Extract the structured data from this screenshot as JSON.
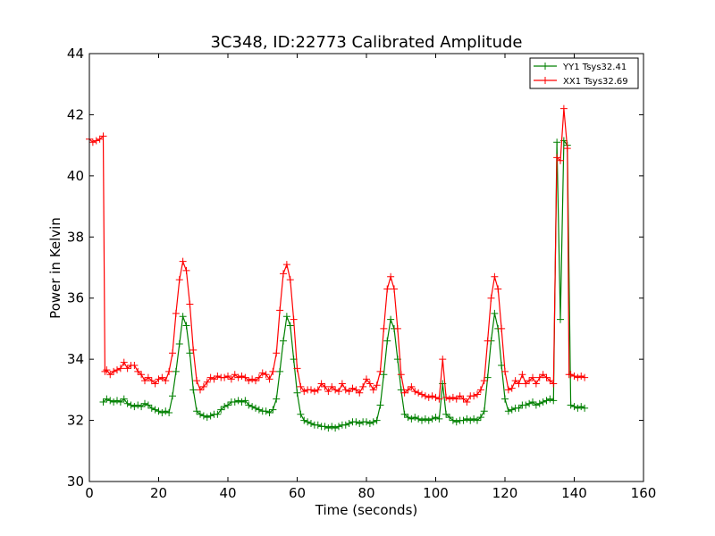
{
  "chart_data": {
    "type": "line",
    "title": "3C348, ID:22773 Calibrated Amplitude",
    "xlabel": "Time (seconds)",
    "ylabel": "Power in Kelvin",
    "xlim": [
      0,
      160
    ],
    "ylim": [
      30,
      44
    ],
    "xticks": [
      0,
      20,
      40,
      60,
      80,
      100,
      120,
      140,
      160
    ],
    "yticks": [
      30,
      32,
      34,
      36,
      38,
      40,
      42,
      44
    ],
    "grid": false,
    "legend_position": "top-right",
    "marker": "+",
    "series": [
      {
        "name": "YY1 Tsys32.41",
        "color": "#008000",
        "points": [
          [
            4,
            32.6
          ],
          [
            5,
            32.7
          ],
          [
            6,
            32.65
          ],
          [
            7,
            32.6
          ],
          [
            8,
            32.65
          ],
          [
            9,
            32.6
          ],
          [
            10,
            32.7
          ],
          [
            11,
            32.55
          ],
          [
            12,
            32.5
          ],
          [
            13,
            32.45
          ],
          [
            14,
            32.5
          ],
          [
            15,
            32.45
          ],
          [
            16,
            32.55
          ],
          [
            17,
            32.5
          ],
          [
            18,
            32.4
          ],
          [
            19,
            32.35
          ],
          [
            20,
            32.3
          ],
          [
            21,
            32.25
          ],
          [
            22,
            32.3
          ],
          [
            23,
            32.25
          ],
          [
            24,
            32.8
          ],
          [
            25,
            33.6
          ],
          [
            26,
            34.5
          ],
          [
            27,
            35.4
          ],
          [
            28,
            35.1
          ],
          [
            29,
            34.2
          ],
          [
            30,
            33.0
          ],
          [
            31,
            32.3
          ],
          [
            32,
            32.2
          ],
          [
            33,
            32.15
          ],
          [
            34,
            32.1
          ],
          [
            35,
            32.15
          ],
          [
            36,
            32.2
          ],
          [
            37,
            32.2
          ],
          [
            38,
            32.35
          ],
          [
            39,
            32.45
          ],
          [
            40,
            32.5
          ],
          [
            41,
            32.6
          ],
          [
            42,
            32.6
          ],
          [
            43,
            32.65
          ],
          [
            44,
            32.6
          ],
          [
            45,
            32.65
          ],
          [
            46,
            32.5
          ],
          [
            47,
            32.45
          ],
          [
            48,
            32.4
          ],
          [
            49,
            32.35
          ],
          [
            50,
            32.3
          ],
          [
            51,
            32.3
          ],
          [
            52,
            32.25
          ],
          [
            53,
            32.35
          ],
          [
            54,
            32.7
          ],
          [
            55,
            33.6
          ],
          [
            56,
            34.6
          ],
          [
            57,
            35.4
          ],
          [
            58,
            35.1
          ],
          [
            59,
            34.0
          ],
          [
            60,
            32.9
          ],
          [
            61,
            32.2
          ],
          [
            62,
            32.0
          ],
          [
            63,
            31.95
          ],
          [
            64,
            31.9
          ],
          [
            65,
            31.85
          ],
          [
            66,
            31.85
          ],
          [
            67,
            31.8
          ],
          [
            68,
            31.8
          ],
          [
            69,
            31.75
          ],
          [
            70,
            31.8
          ],
          [
            71,
            31.75
          ],
          [
            72,
            31.8
          ],
          [
            73,
            31.85
          ],
          [
            74,
            31.85
          ],
          [
            75,
            31.9
          ],
          [
            76,
            31.95
          ],
          [
            77,
            31.95
          ],
          [
            78,
            31.9
          ],
          [
            79,
            31.95
          ],
          [
            80,
            31.95
          ],
          [
            81,
            31.9
          ],
          [
            82,
            31.95
          ],
          [
            83,
            32.0
          ],
          [
            84,
            32.5
          ],
          [
            85,
            33.5
          ],
          [
            86,
            34.6
          ],
          [
            87,
            35.3
          ],
          [
            88,
            35.0
          ],
          [
            89,
            34.0
          ],
          [
            90,
            33.0
          ],
          [
            91,
            32.2
          ],
          [
            92,
            32.1
          ],
          [
            93,
            32.05
          ],
          [
            94,
            32.1
          ],
          [
            95,
            32.05
          ],
          [
            96,
            32.0
          ],
          [
            97,
            32.05
          ],
          [
            98,
            32.0
          ],
          [
            99,
            32.05
          ],
          [
            100,
            32.1
          ],
          [
            101,
            32.05
          ],
          [
            102,
            33.2
          ],
          [
            103,
            32.2
          ],
          [
            104,
            32.1
          ],
          [
            105,
            32.0
          ],
          [
            106,
            31.95
          ],
          [
            107,
            32.0
          ],
          [
            108,
            32.0
          ],
          [
            109,
            32.05
          ],
          [
            110,
            32.0
          ],
          [
            111,
            32.05
          ],
          [
            112,
            32.0
          ],
          [
            113,
            32.1
          ],
          [
            114,
            32.3
          ],
          [
            115,
            33.4
          ],
          [
            116,
            34.6
          ],
          [
            117,
            35.5
          ],
          [
            118,
            35.0
          ],
          [
            119,
            33.8
          ],
          [
            120,
            32.7
          ],
          [
            121,
            32.3
          ],
          [
            122,
            32.35
          ],
          [
            123,
            32.4
          ],
          [
            124,
            32.4
          ],
          [
            125,
            32.5
          ],
          [
            126,
            32.5
          ],
          [
            127,
            32.55
          ],
          [
            128,
            32.6
          ],
          [
            129,
            32.5
          ],
          [
            130,
            32.55
          ],
          [
            131,
            32.6
          ],
          [
            132,
            32.65
          ],
          [
            133,
            32.7
          ],
          [
            134,
            32.65
          ],
          [
            135,
            41.1
          ],
          [
            136,
            35.3
          ],
          [
            137,
            41.15
          ],
          [
            138,
            41.0
          ],
          [
            139,
            32.5
          ],
          [
            140,
            32.45
          ],
          [
            141,
            32.4
          ],
          [
            142,
            32.45
          ],
          [
            143,
            32.4
          ]
        ]
      },
      {
        "name": "XX1 Tsys32.69",
        "color": "#ff0000",
        "points": [
          [
            0,
            41.2
          ],
          [
            1,
            41.1
          ],
          [
            2,
            41.15
          ],
          [
            3,
            41.2
          ],
          [
            4,
            41.3
          ],
          [
            4.5,
            33.6
          ],
          [
            5,
            33.65
          ],
          [
            6,
            33.5
          ],
          [
            7,
            33.6
          ],
          [
            8,
            33.65
          ],
          [
            9,
            33.7
          ],
          [
            10,
            33.9
          ],
          [
            11,
            33.7
          ],
          [
            12,
            33.8
          ],
          [
            13,
            33.8
          ],
          [
            14,
            33.6
          ],
          [
            15,
            33.5
          ],
          [
            16,
            33.3
          ],
          [
            17,
            33.4
          ],
          [
            18,
            33.3
          ],
          [
            19,
            33.2
          ],
          [
            20,
            33.35
          ],
          [
            21,
            33.4
          ],
          [
            22,
            33.3
          ],
          [
            23,
            33.6
          ],
          [
            24,
            34.2
          ],
          [
            25,
            35.5
          ],
          [
            26,
            36.6
          ],
          [
            27,
            37.2
          ],
          [
            28,
            36.9
          ],
          [
            29,
            35.8
          ],
          [
            30,
            34.3
          ],
          [
            31,
            33.3
          ],
          [
            32,
            33.0
          ],
          [
            33,
            33.1
          ],
          [
            34,
            33.25
          ],
          [
            35,
            33.4
          ],
          [
            36,
            33.35
          ],
          [
            37,
            33.45
          ],
          [
            38,
            33.4
          ],
          [
            39,
            33.4
          ],
          [
            40,
            33.45
          ],
          [
            41,
            33.35
          ],
          [
            42,
            33.5
          ],
          [
            43,
            33.4
          ],
          [
            44,
            33.45
          ],
          [
            45,
            33.4
          ],
          [
            46,
            33.3
          ],
          [
            47,
            33.35
          ],
          [
            48,
            33.3
          ],
          [
            49,
            33.4
          ],
          [
            50,
            33.55
          ],
          [
            51,
            33.5
          ],
          [
            52,
            33.35
          ],
          [
            53,
            33.6
          ],
          [
            54,
            34.2
          ],
          [
            55,
            35.6
          ],
          [
            56,
            36.8
          ],
          [
            57,
            37.1
          ],
          [
            58,
            36.6
          ],
          [
            59,
            35.3
          ],
          [
            60,
            33.7
          ],
          [
            61,
            33.1
          ],
          [
            62,
            32.95
          ],
          [
            63,
            33.0
          ],
          [
            64,
            33.0
          ],
          [
            65,
            32.95
          ],
          [
            66,
            33.0
          ],
          [
            67,
            33.2
          ],
          [
            68,
            33.1
          ],
          [
            69,
            32.95
          ],
          [
            70,
            33.1
          ],
          [
            71,
            33.0
          ],
          [
            72,
            32.95
          ],
          [
            73,
            33.2
          ],
          [
            74,
            33.0
          ],
          [
            75,
            32.95
          ],
          [
            76,
            33.05
          ],
          [
            77,
            33.0
          ],
          [
            78,
            32.9
          ],
          [
            79,
            33.1
          ],
          [
            80,
            33.35
          ],
          [
            81,
            33.2
          ],
          [
            82,
            33.0
          ],
          [
            83,
            33.15
          ],
          [
            84,
            33.6
          ],
          [
            85,
            35.0
          ],
          [
            86,
            36.3
          ],
          [
            87,
            36.7
          ],
          [
            88,
            36.3
          ],
          [
            89,
            35.0
          ],
          [
            90,
            33.5
          ],
          [
            91,
            32.9
          ],
          [
            92,
            33.0
          ],
          [
            93,
            33.1
          ],
          [
            94,
            32.95
          ],
          [
            95,
            32.9
          ],
          [
            96,
            32.85
          ],
          [
            97,
            32.8
          ],
          [
            98,
            32.75
          ],
          [
            99,
            32.8
          ],
          [
            100,
            32.75
          ],
          [
            101,
            32.7
          ],
          [
            102,
            34.0
          ],
          [
            103,
            32.75
          ],
          [
            104,
            32.7
          ],
          [
            105,
            32.75
          ],
          [
            106,
            32.7
          ],
          [
            107,
            32.8
          ],
          [
            108,
            32.7
          ],
          [
            109,
            32.6
          ],
          [
            110,
            32.8
          ],
          [
            111,
            32.8
          ],
          [
            112,
            32.85
          ],
          [
            113,
            33.0
          ],
          [
            114,
            33.3
          ],
          [
            115,
            34.6
          ],
          [
            116,
            36.0
          ],
          [
            117,
            36.7
          ],
          [
            118,
            36.3
          ],
          [
            119,
            35.0
          ],
          [
            120,
            33.6
          ],
          [
            121,
            33.0
          ],
          [
            122,
            33.05
          ],
          [
            123,
            33.3
          ],
          [
            124,
            33.2
          ],
          [
            125,
            33.5
          ],
          [
            126,
            33.2
          ],
          [
            127,
            33.3
          ],
          [
            128,
            33.4
          ],
          [
            129,
            33.2
          ],
          [
            130,
            33.4
          ],
          [
            131,
            33.5
          ],
          [
            132,
            33.4
          ],
          [
            133,
            33.3
          ],
          [
            134,
            33.2
          ],
          [
            135,
            40.6
          ],
          [
            136,
            40.5
          ],
          [
            137,
            42.2
          ],
          [
            138,
            40.9
          ],
          [
            138.5,
            33.5
          ],
          [
            139,
            33.5
          ],
          [
            140,
            33.45
          ],
          [
            141,
            33.4
          ],
          [
            142,
            33.45
          ],
          [
            143,
            33.4
          ]
        ]
      }
    ]
  }
}
